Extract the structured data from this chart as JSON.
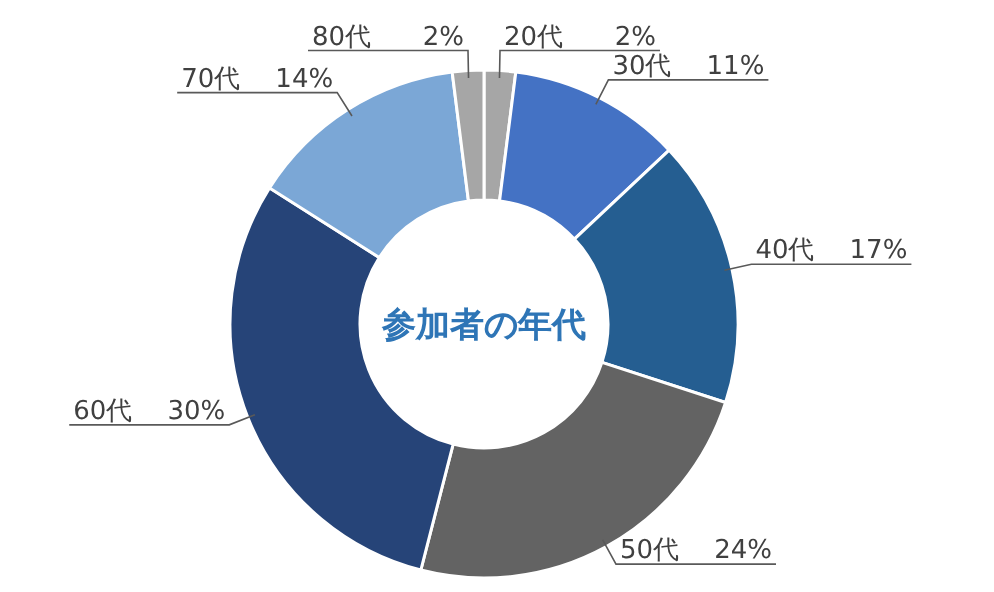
{
  "chart_data": {
    "type": "donut",
    "title": "参加者の年代",
    "categories": [
      "20代",
      "30代",
      "40代",
      "50代",
      "60代",
      "70代",
      "80代"
    ],
    "values": [
      2,
      11,
      17,
      24,
      30,
      14,
      2
    ],
    "colors": [
      "#a6a6a6",
      "#4472c4",
      "#255e91",
      "#636363",
      "#264478",
      "#7ba7d6",
      "#a6a6a6"
    ],
    "value_labels": [
      "2%",
      "11%",
      "17%",
      "24%",
      "30%",
      "14%",
      "2%"
    ]
  }
}
